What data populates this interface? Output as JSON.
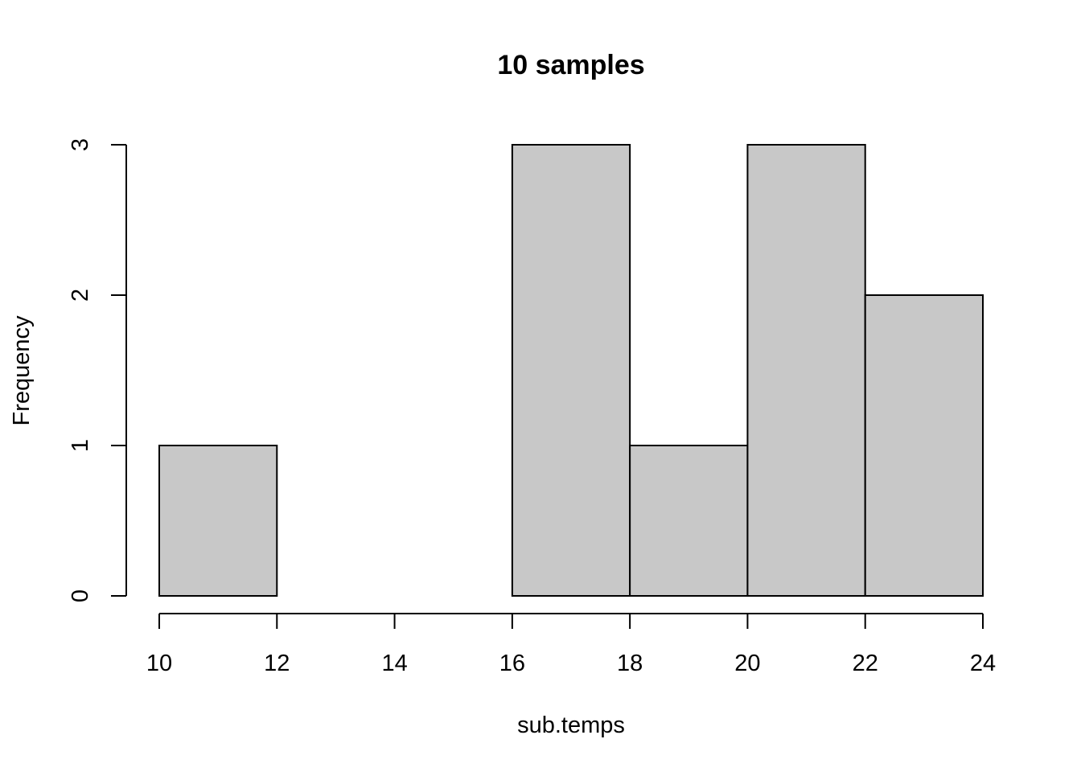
{
  "chart_data": {
    "type": "bar",
    "subtype": "histogram",
    "title": "10 samples",
    "xlabel": "sub.temps",
    "ylabel": "Frequency",
    "bins": [
      {
        "start": 10,
        "end": 12,
        "count": 1
      },
      {
        "start": 12,
        "end": 14,
        "count": 0
      },
      {
        "start": 14,
        "end": 16,
        "count": 0
      },
      {
        "start": 16,
        "end": 18,
        "count": 3
      },
      {
        "start": 18,
        "end": 20,
        "count": 1
      },
      {
        "start": 20,
        "end": 22,
        "count": 3
      },
      {
        "start": 22,
        "end": 24,
        "count": 2
      }
    ],
    "xlim": [
      10,
      24
    ],
    "ylim": [
      0,
      3
    ],
    "x_ticks": [
      "10",
      "12",
      "14",
      "16",
      "18",
      "20",
      "22",
      "24"
    ],
    "y_ticks": [
      "0",
      "1",
      "2",
      "3"
    ],
    "grid": false,
    "bar_fill": "#c8c8c8",
    "bar_stroke": "#000000"
  }
}
